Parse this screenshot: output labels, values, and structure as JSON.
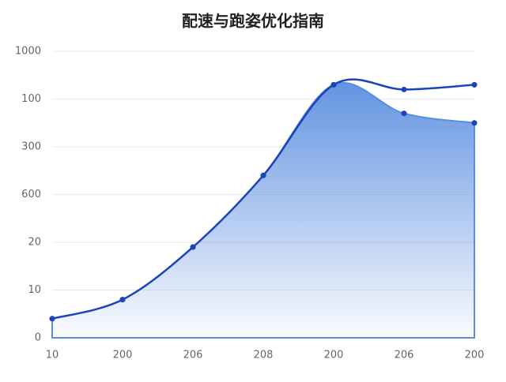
{
  "chart_data": {
    "type": "area-line",
    "title": "配速与跑姿优化指南",
    "categories": [
      "10",
      "200",
      "206",
      "208",
      "200",
      "206",
      "200"
    ],
    "ylim": [
      0,
      6
    ],
    "yticks": [
      {
        "value": 0,
        "label": "0"
      },
      {
        "value": 1,
        "label": "10"
      },
      {
        "value": 2,
        "label": "20"
      },
      {
        "value": 3,
        "label": "600"
      },
      {
        "value": 4,
        "label": "300"
      },
      {
        "value": 5,
        "label": "100"
      },
      {
        "value": 6,
        "label": "1000"
      }
    ],
    "grid": true,
    "series": [
      {
        "color": "#5b8ee0",
        "values": [
          0.4,
          0.8,
          1.9,
          3.4,
          5.3,
          4.7,
          4.5
        ]
      },
      {
        "color": "#1a44b8",
        "values": [
          0.4,
          0.8,
          1.9,
          3.4,
          5.3,
          5.2,
          5.3
        ]
      }
    ]
  }
}
